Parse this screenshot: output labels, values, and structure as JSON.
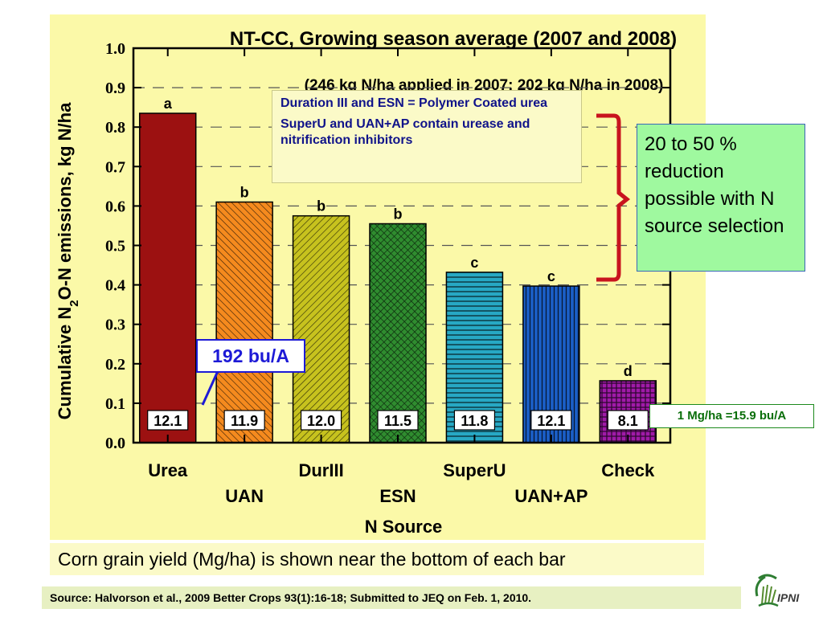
{
  "chart_data": {
    "type": "bar",
    "title": "NT-CC, Growing season average (2007 and 2008)",
    "subtitle": "(246 kg N/ha applied in 2007; 202 kg N/ha in 2008)",
    "ylabel_parts": [
      "Cumulative N",
      "2",
      "O-N emissions, kg N/ha"
    ],
    "xlabel": "N Source",
    "ylim": [
      0,
      1.0
    ],
    "yticks": [
      "0.0",
      "0.1",
      "0.2",
      "0.3",
      "0.4",
      "0.5",
      "0.6",
      "0.7",
      "0.8",
      "0.9",
      "1.0"
    ],
    "grid": "horizontal dashed",
    "categories": [
      "Urea",
      "UAN",
      "DurIII",
      "ESN",
      "SuperU",
      "UAN+AP",
      "Check"
    ],
    "values": [
      0.835,
      0.61,
      0.575,
      0.555,
      0.432,
      0.397,
      0.157
    ],
    "significance_letters": [
      "a",
      "b",
      "b",
      "b",
      "c",
      "c",
      "d"
    ],
    "grain_yield_labels": [
      "12.1",
      "11.9",
      "12.0",
      "11.5",
      "11.8",
      "12.1",
      "8.1"
    ],
    "bar_colors": [
      "#9c1111",
      "#f58a1e",
      "#c7c21e",
      "#2f8c2f",
      "#27a8c4",
      "#1b5fc8",
      "#a01aa8"
    ]
  },
  "notes": {
    "line1": "Duration III and ESN = Polymer Coated urea",
    "line2": "SuperU and UAN+AP contain urease and nitrification inhibitors"
  },
  "reduction_note": "20 to 50 % reduction possible with N source selection",
  "conversion_note": "1 Mg/ha =15.9 bu/A",
  "yield_callout": "192 bu/A",
  "caption": "Corn grain yield (Mg/ha) is shown near the bottom of each bar",
  "source": "Source: Halvorson et al., 2009 Better Crops 93(1):16-18; Submitted to JEQ on Feb. 1, 2010.",
  "logo_text": "IPNI",
  "colors": {
    "panel_bg": "#fbf9a8",
    "bracket": "#c8141e",
    "callout_blue": "#1d1ad6"
  }
}
